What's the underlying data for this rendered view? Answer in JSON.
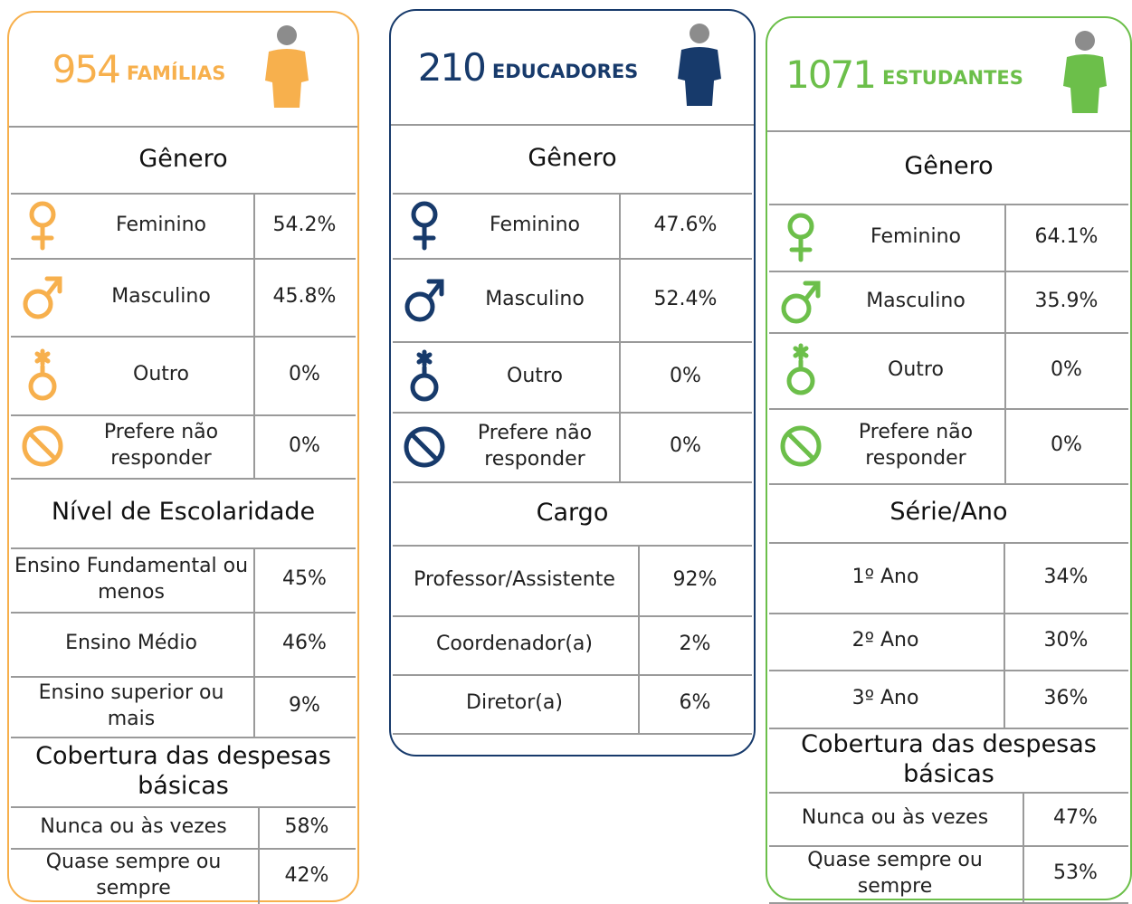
{
  "cards": [
    {
      "count": "954",
      "label": "FAMÍLIAS",
      "sections": [
        {
          "title": "Gênero",
          "rows": [
            {
              "label": "Feminino",
              "value": "54.2%"
            },
            {
              "label": "Masculino",
              "value": "45.8%"
            },
            {
              "label": "Outro",
              "value": "0%"
            },
            {
              "label": "Prefere não responder",
              "value": "0%"
            }
          ]
        },
        {
          "title": "Nível de Escolaridade",
          "rows": [
            {
              "label": "Ensino Fundamental ou menos",
              "value": "45%"
            },
            {
              "label": "Ensino Médio",
              "value": "46%"
            },
            {
              "label": "Ensino superior ou mais",
              "value": "9%"
            }
          ]
        },
        {
          "title": "Cobertura das despesas básicas",
          "rows": [
            {
              "label": "Nunca ou às vezes",
              "value": "58%"
            },
            {
              "label": "Quase sempre ou sempre",
              "value": "42%"
            }
          ]
        }
      ]
    },
    {
      "count": "210",
      "label": "EDUCADORES",
      "sections": [
        {
          "title": "Gênero",
          "rows": [
            {
              "label": "Feminino",
              "value": "47.6%"
            },
            {
              "label": "Masculino",
              "value": "52.4%"
            },
            {
              "label": "Outro",
              "value": "0%"
            },
            {
              "label": "Prefere não responder",
              "value": "0%"
            }
          ]
        },
        {
          "title": "Cargo",
          "rows": [
            {
              "label": "Professor/Assistente",
              "value": "92%"
            },
            {
              "label": "Coordenador(a)",
              "value": "2%"
            },
            {
              "label": "Diretor(a)",
              "value": "6%"
            }
          ]
        }
      ]
    },
    {
      "count": "1071",
      "label": "ESTUDANTES",
      "sections": [
        {
          "title": "Gênero",
          "rows": [
            {
              "label": "Feminino",
              "value": "64.1%"
            },
            {
              "label": "Masculino",
              "value": "35.9%"
            },
            {
              "label": "Outro",
              "value": "0%"
            },
            {
              "label": "Prefere não responder",
              "value": "0%"
            }
          ]
        },
        {
          "title": "Série/Ano",
          "rows": [
            {
              "label": "1º Ano",
              "value": "34%"
            },
            {
              "label": "2º Ano",
              "value": "30%"
            },
            {
              "label": "3º Ano",
              "value": "36%"
            }
          ]
        },
        {
          "title": "Cobertura das despesas básicas",
          "rows": [
            {
              "label": "Nunca ou às vezes",
              "value": "47%"
            },
            {
              "label": "Quase sempre ou sempre",
              "value": "53%"
            }
          ]
        }
      ]
    }
  ]
}
